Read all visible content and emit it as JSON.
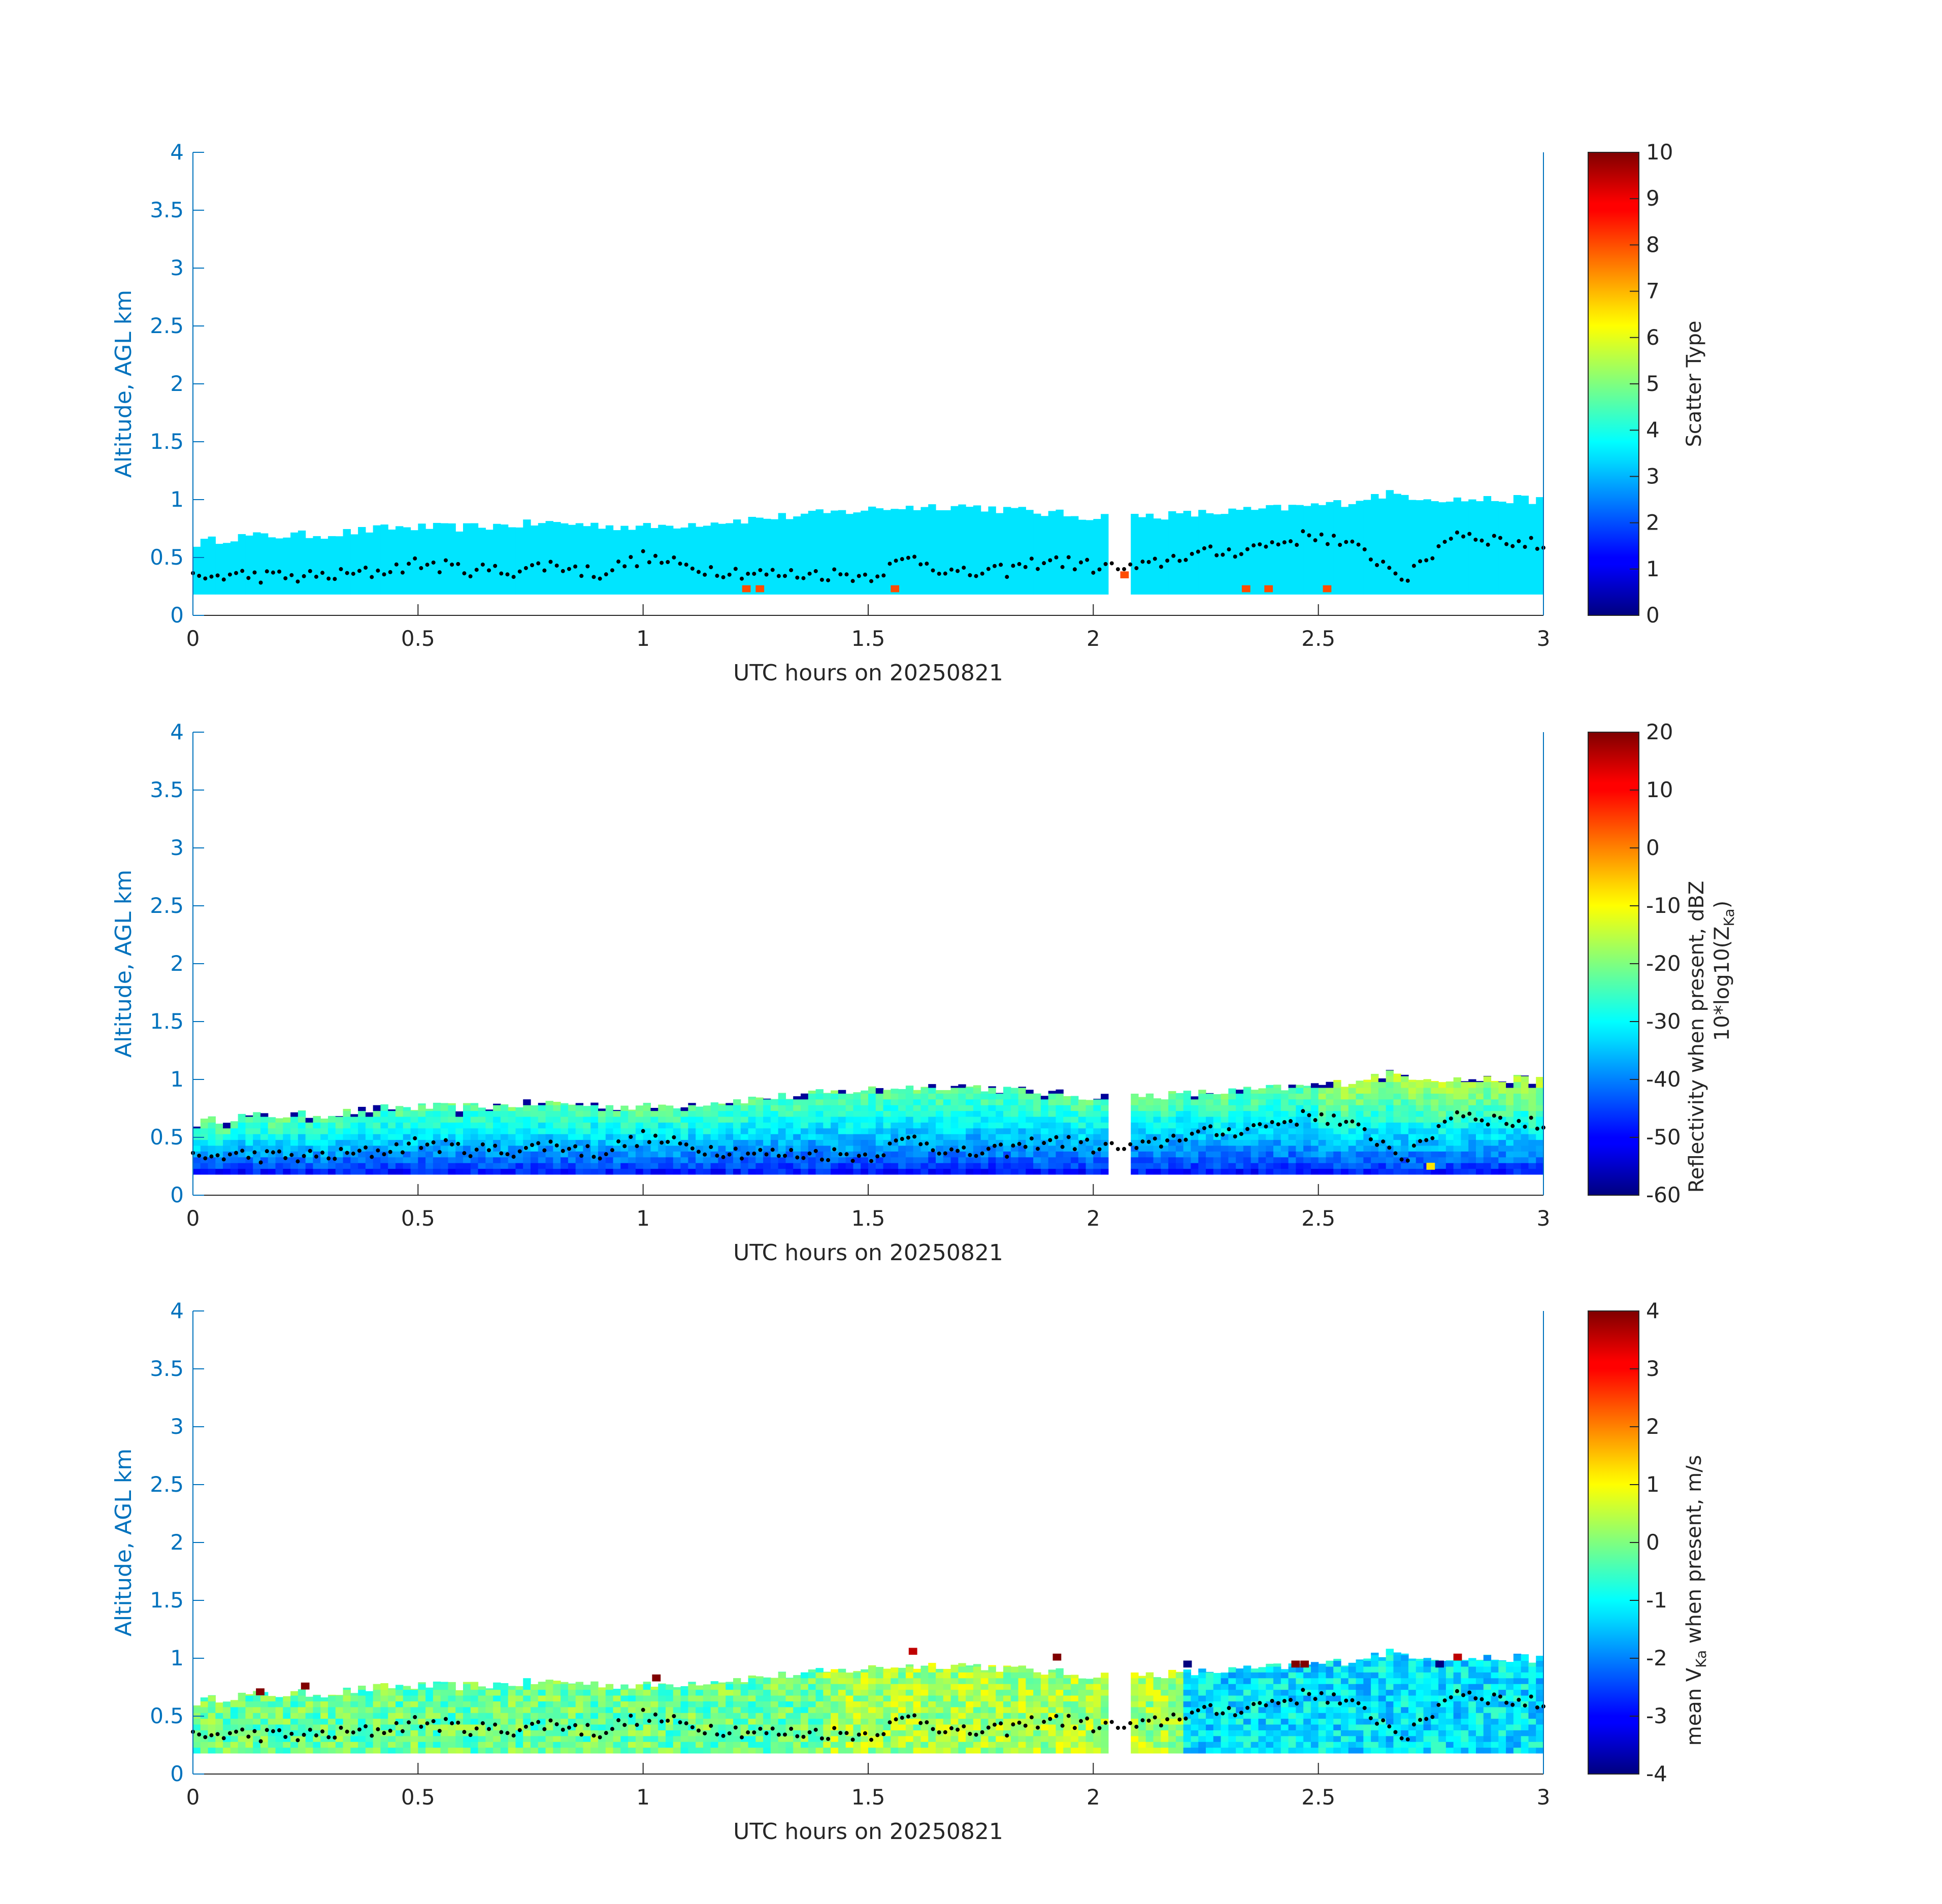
{
  "chart_data": [
    {
      "type": "heatmap",
      "xlabel": "UTC hours on 20250821",
      "ylabel": "Altitude, AGL km",
      "xlim": [
        0,
        3
      ],
      "ylim": [
        0,
        4
      ],
      "xticks": [
        "0",
        "0.5",
        "1",
        "1.5",
        "2",
        "2.5",
        "3"
      ],
      "yticks": [
        "0",
        "0.5",
        "1",
        "1.5",
        "2",
        "2.5",
        "3",
        "3.5",
        "4"
      ],
      "colorbar": {
        "label": "Scatter Type",
        "label2": "",
        "range": [
          0,
          10
        ],
        "ticks": [
          "0",
          "1",
          "2",
          "3",
          "4",
          "5",
          "6",
          "7",
          "8",
          "9",
          "10"
        ]
      },
      "echo_base_km": 0.18,
      "echo_top_km": [
        [
          0.0,
          0.62
        ],
        [
          0.1,
          0.68
        ],
        [
          0.3,
          0.7
        ],
        [
          0.45,
          0.76
        ],
        [
          0.6,
          0.76
        ],
        [
          0.8,
          0.8
        ],
        [
          1.0,
          0.76
        ],
        [
          1.2,
          0.82
        ],
        [
          1.4,
          0.88
        ],
        [
          1.55,
          0.93
        ],
        [
          1.7,
          0.95
        ],
        [
          1.85,
          0.9
        ],
        [
          2.0,
          0.85
        ],
        [
          2.2,
          0.87
        ],
        [
          2.4,
          0.92
        ],
        [
          2.55,
          0.97
        ],
        [
          2.65,
          1.05
        ],
        [
          2.8,
          1.0
        ],
        [
          3.0,
          1.0
        ]
      ],
      "dominant_value": 3.5,
      "highlight_cells": [
        [
          1.22,
          0.2,
          8.0
        ],
        [
          1.25,
          0.2,
          8.0
        ],
        [
          1.55,
          0.2,
          8.0
        ],
        [
          2.06,
          0.32,
          8.0
        ],
        [
          2.33,
          0.2,
          8.0
        ],
        [
          2.38,
          0.2,
          8.0
        ],
        [
          2.51,
          0.2,
          8.0
        ]
      ],
      "cloud_base_dots_km": [
        [
          0.0,
          0.32
        ],
        [
          0.1,
          0.35
        ],
        [
          0.2,
          0.33
        ],
        [
          0.3,
          0.34
        ],
        [
          0.4,
          0.37
        ],
        [
          0.5,
          0.45
        ],
        [
          0.6,
          0.4
        ],
        [
          0.7,
          0.38
        ],
        [
          0.8,
          0.44
        ],
        [
          0.9,
          0.36
        ],
        [
          1.0,
          0.5
        ],
        [
          1.1,
          0.42
        ],
        [
          1.2,
          0.38
        ],
        [
          1.3,
          0.35
        ],
        [
          1.4,
          0.36
        ],
        [
          1.5,
          0.34
        ],
        [
          1.6,
          0.5
        ],
        [
          1.7,
          0.35
        ],
        [
          1.8,
          0.38
        ],
        [
          1.9,
          0.48
        ],
        [
          2.0,
          0.42
        ],
        [
          2.1,
          0.4
        ],
        [
          2.2,
          0.52
        ],
        [
          2.3,
          0.55
        ],
        [
          2.4,
          0.62
        ],
        [
          2.5,
          0.7
        ],
        [
          2.6,
          0.55
        ],
        [
          2.7,
          0.32
        ],
        [
          2.8,
          0.72
        ],
        [
          2.9,
          0.65
        ],
        [
          3.0,
          0.6
        ]
      ]
    },
    {
      "type": "heatmap",
      "xlabel": "UTC hours on 20250821",
      "ylabel": "Altitude, AGL km",
      "xlim": [
        0,
        3
      ],
      "ylim": [
        0,
        4
      ],
      "xticks": [
        "0",
        "0.5",
        "1",
        "1.5",
        "2",
        "2.5",
        "3"
      ],
      "yticks": [
        "0",
        "0.5",
        "1",
        "1.5",
        "2",
        "2.5",
        "3",
        "3.5",
        "4"
      ],
      "colorbar": {
        "label": "Reflectivity when present, dBZ",
        "label2": "10*log10(Z",
        "label2_sub": "Ka",
        "label2_end": ")",
        "range": [
          -60,
          20
        ],
        "ticks": [
          "-60",
          "-50",
          "-40",
          "-30",
          "-20",
          "-10",
          "0",
          "10",
          "20"
        ]
      },
      "value_profile": {
        "base_value": -48,
        "top_value": -22,
        "late_period_start_h": 2.5,
        "late_period_value": -15,
        "top_edge_value": -58
      },
      "highlight_cells": [
        [
          2.74,
          0.22,
          -8
        ]
      ]
    },
    {
      "type": "heatmap",
      "xlabel": "UTC hours on 20250821",
      "ylabel": "Altitude, AGL km",
      "xlim": [
        0,
        3
      ],
      "ylim": [
        0,
        4
      ],
      "xticks": [
        "0",
        "0.5",
        "1",
        "1.5",
        "2",
        "2.5",
        "3"
      ],
      "yticks": [
        "0",
        "0.5",
        "1",
        "1.5",
        "2",
        "2.5",
        "3",
        "3.5",
        "4"
      ],
      "colorbar": {
        "label": "mean V",
        "label_sub": "Ka",
        "label_end": " when present, m/s",
        "range": [
          -4,
          4
        ],
        "ticks": [
          "-4",
          "-3",
          "-2",
          "-1",
          "0",
          "1",
          "2",
          "3",
          "4"
        ]
      },
      "value_profile": {
        "early_value": -0.2,
        "mid_value": 0.3,
        "late_value": -1.2
      },
      "highlight_cells": [
        [
          0.14,
          0.68,
          4.0
        ],
        [
          0.24,
          0.73,
          4.0
        ],
        [
          1.02,
          0.8,
          4.0
        ],
        [
          1.59,
          1.03,
          3.5
        ],
        [
          1.91,
          0.98,
          4.0
        ],
        [
          2.2,
          0.92,
          -4.0
        ],
        [
          2.44,
          0.92,
          4.0
        ],
        [
          2.46,
          0.92,
          4.0
        ],
        [
          2.8,
          0.98,
          3.5
        ],
        [
          2.76,
          0.92,
          -4.0
        ]
      ]
    }
  ]
}
